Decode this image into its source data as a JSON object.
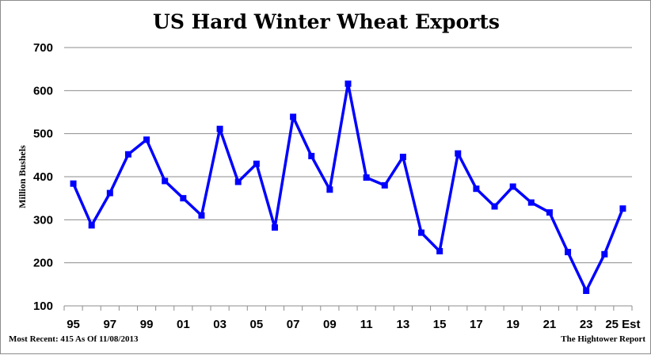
{
  "chart_data": {
    "type": "line",
    "title": "US Hard Winter Wheat Exports",
    "ylabel": "Million Bushels",
    "xlabel": "",
    "ylim": [
      100,
      700
    ],
    "yticks": [
      100,
      200,
      300,
      400,
      500,
      600,
      700
    ],
    "grid": true,
    "line_color": "#0000ff",
    "x": [
      "95",
      "96",
      "97",
      "98",
      "99",
      "00",
      "01",
      "02",
      "03",
      "04",
      "05",
      "06",
      "07",
      "08",
      "09",
      "10",
      "11",
      "12",
      "13",
      "14",
      "15",
      "16",
      "17",
      "18",
      "19",
      "20",
      "21",
      "22",
      "23",
      "24",
      "25"
    ],
    "x_tick_labels": [
      "95",
      "",
      "97",
      "",
      "99",
      "",
      "01",
      "",
      "03",
      "",
      "05",
      "",
      "07",
      "",
      "09",
      "",
      "11",
      "",
      "13",
      "",
      "15",
      "",
      "17",
      "",
      "19",
      "",
      "21",
      "",
      "23",
      "",
      "25 Est"
    ],
    "series": [
      {
        "values": [
          384,
          287,
          362,
          452,
          486,
          390,
          350,
          310,
          511,
          388,
          430,
          282,
          539,
          448,
          370,
          616,
          398,
          380,
          446,
          270,
          227,
          454,
          372,
          331,
          377,
          340,
          317,
          225,
          135,
          220,
          326
        ]
      }
    ]
  },
  "footer": {
    "left": "Most Recent: 415 As Of 11/08/2013",
    "right": "The Hightower Report"
  }
}
